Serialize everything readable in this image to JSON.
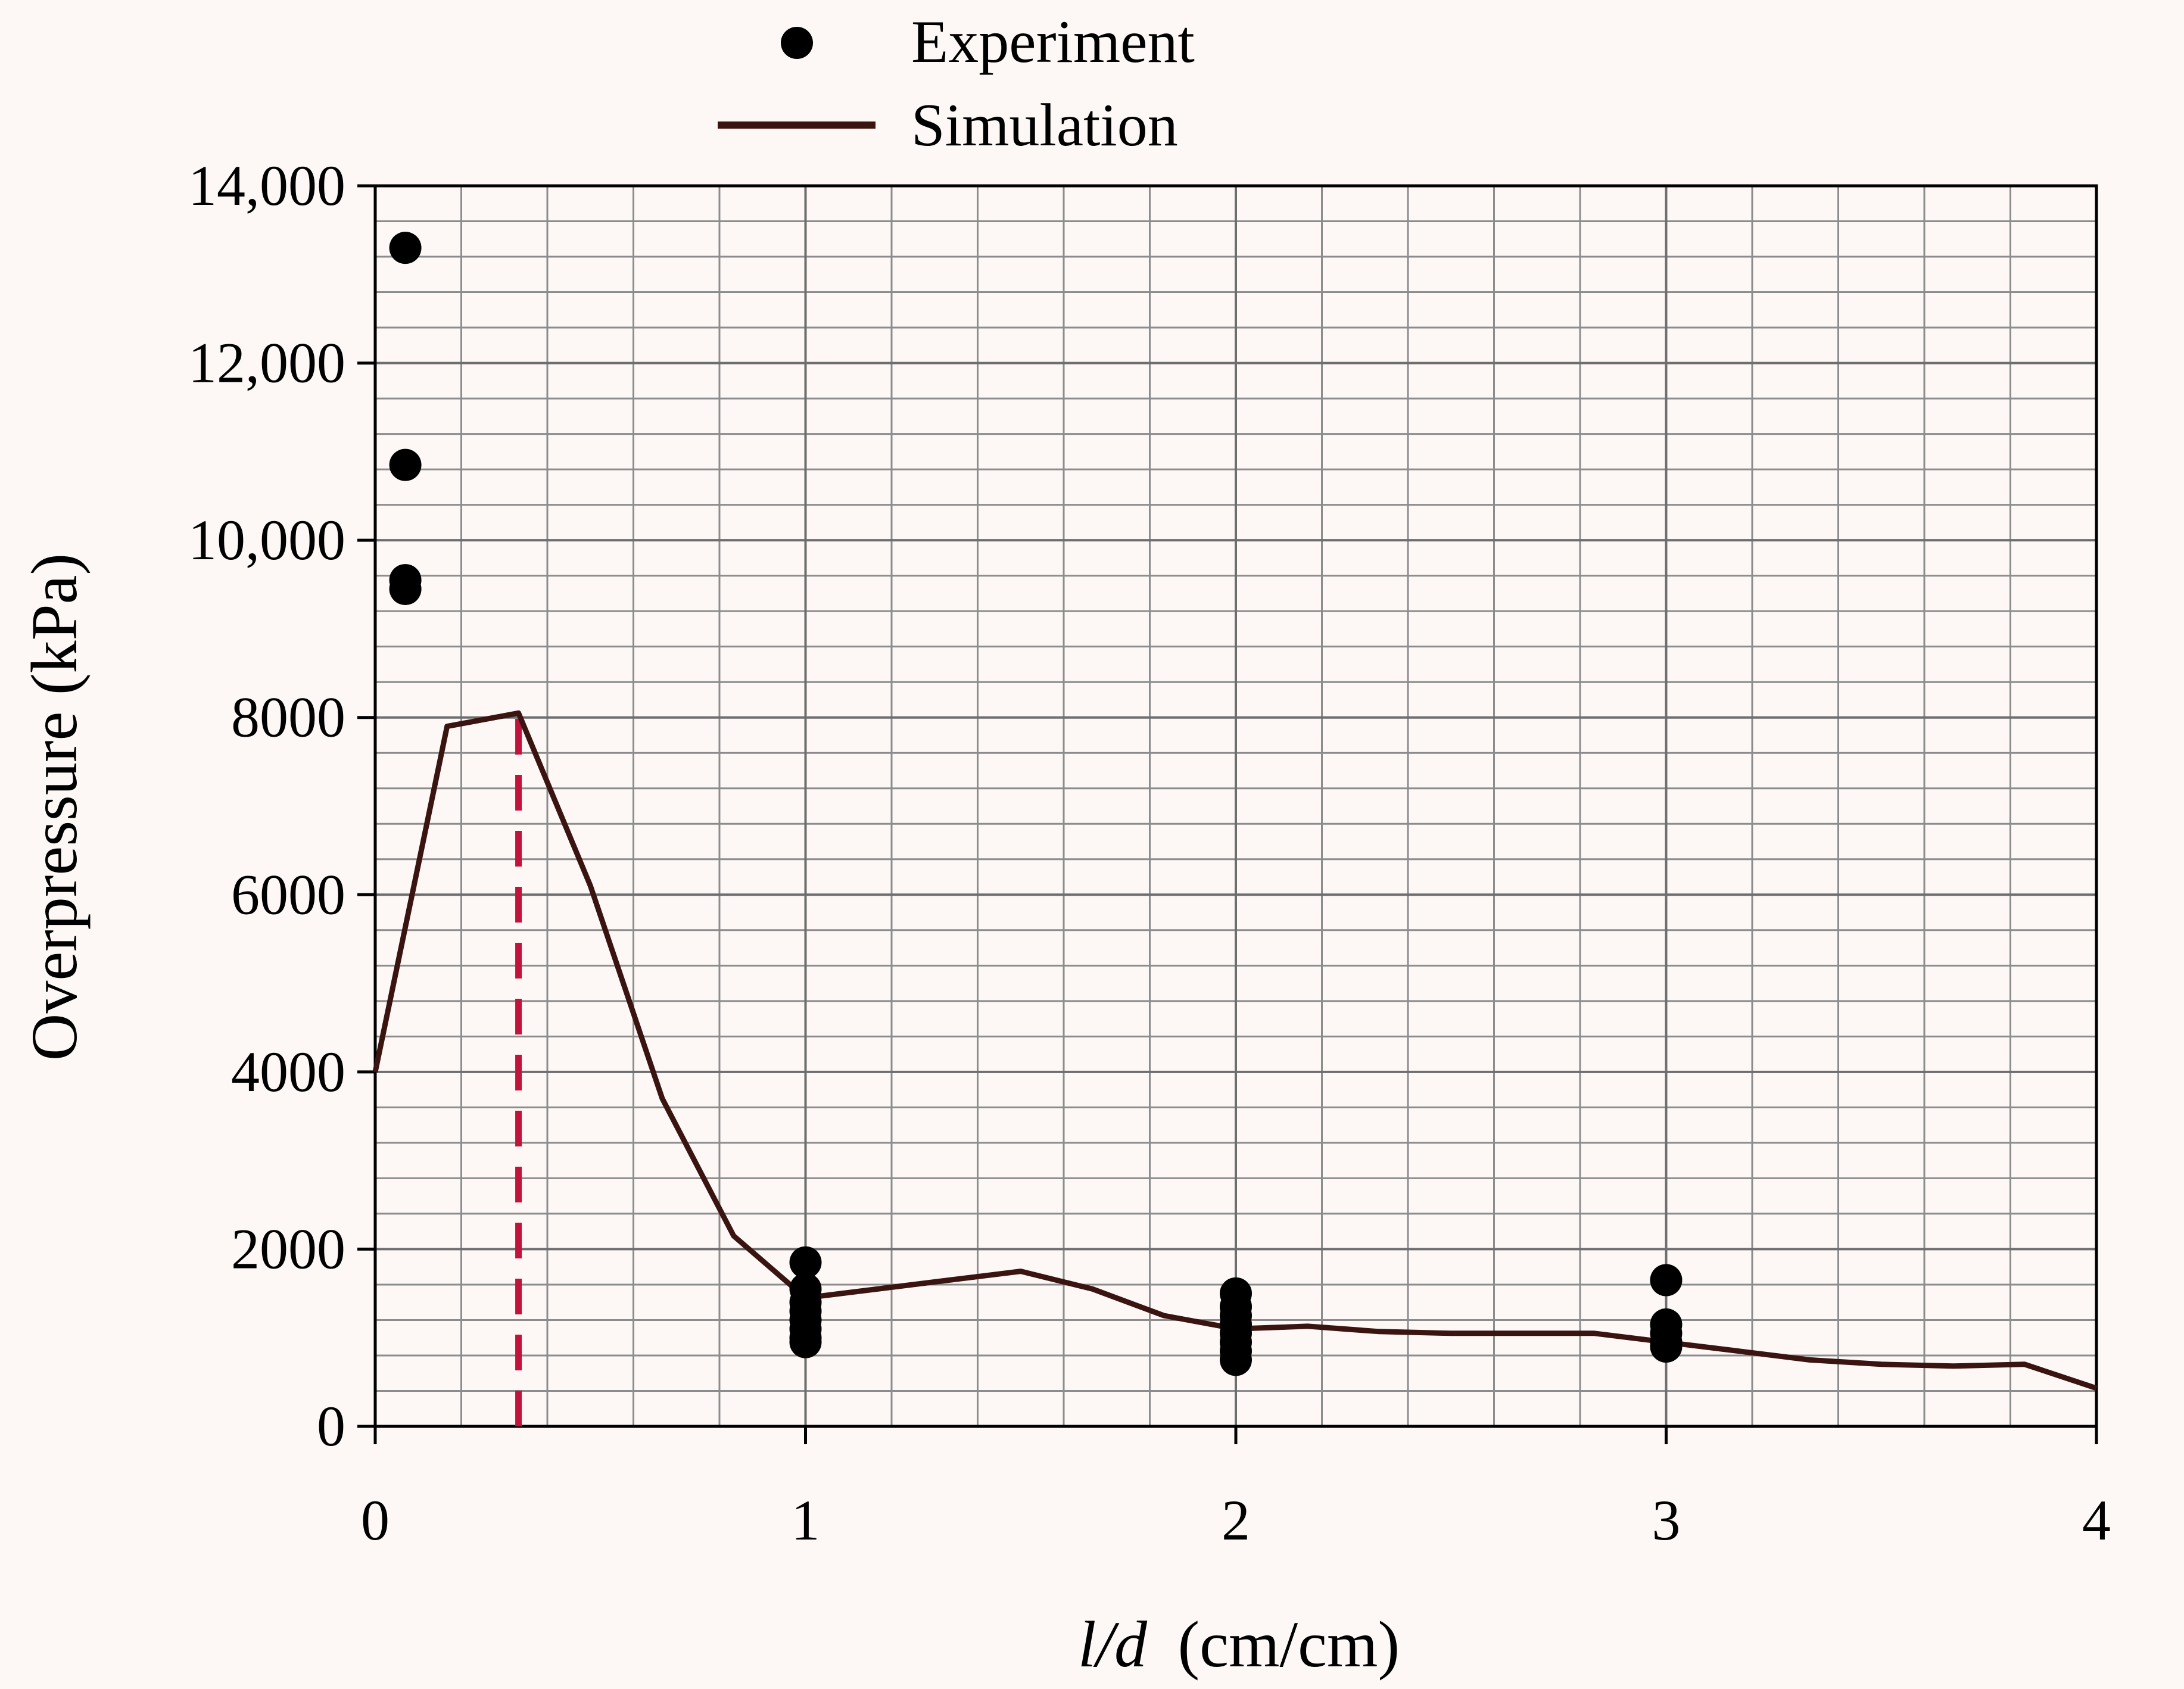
{
  "chart_data": {
    "type": "scatter",
    "title": "",
    "xlabel_italic": "l/d",
    "xlabel_unit": "(cm/cm)",
    "ylabel": "Overpressure (kPa)",
    "xlim": [
      0,
      4
    ],
    "ylim": [
      0,
      14000
    ],
    "xticks": [
      0,
      1,
      2,
      3,
      4
    ],
    "xtick_labels": [
      "0",
      "1",
      "2",
      "3",
      "4"
    ],
    "yticks": [
      0,
      2000,
      4000,
      6000,
      8000,
      10000,
      12000,
      14000
    ],
    "ytick_labels": [
      "0",
      "2000",
      "4000",
      "6000",
      "8000",
      "10,000",
      "12,000",
      "14,000"
    ],
    "minor_x_step": 0.2,
    "minor_y_step": 400,
    "grid": true,
    "legend_position": "top-center",
    "series": [
      {
        "name": "Experiment",
        "kind": "scatter",
        "color": "#000000",
        "points": [
          [
            0.07,
            13300
          ],
          [
            0.07,
            10850
          ],
          [
            0.07,
            9550
          ],
          [
            0.07,
            9450
          ],
          [
            1,
            1850
          ],
          [
            1,
            1550
          ],
          [
            1,
            1400
          ],
          [
            1,
            1300
          ],
          [
            1,
            1200
          ],
          [
            1,
            1100
          ],
          [
            1,
            1000
          ],
          [
            1,
            950
          ],
          [
            2,
            1500
          ],
          [
            2,
            1350
          ],
          [
            2,
            1250
          ],
          [
            2,
            1150
          ],
          [
            2,
            1050
          ],
          [
            2,
            950
          ],
          [
            2,
            850
          ],
          [
            2,
            750
          ],
          [
            3,
            1650
          ],
          [
            3,
            1150
          ],
          [
            3,
            1050
          ],
          [
            3,
            950
          ],
          [
            3,
            900
          ]
        ]
      },
      {
        "name": "Simulation",
        "kind": "line",
        "color": "#3a1410",
        "points": [
          [
            0,
            4000
          ],
          [
            0.167,
            7900
          ],
          [
            0.333,
            8050
          ],
          [
            0.5,
            6100
          ],
          [
            0.667,
            3700
          ],
          [
            0.833,
            2150
          ],
          [
            1,
            1450
          ],
          [
            1.167,
            1550
          ],
          [
            1.333,
            1650
          ],
          [
            1.5,
            1750
          ],
          [
            1.667,
            1550
          ],
          [
            1.833,
            1250
          ],
          [
            2,
            1100
          ],
          [
            2.167,
            1130
          ],
          [
            2.333,
            1070
          ],
          [
            2.5,
            1050
          ],
          [
            2.667,
            1050
          ],
          [
            2.833,
            1050
          ],
          [
            3,
            950
          ],
          [
            3.167,
            850
          ],
          [
            3.333,
            750
          ],
          [
            3.5,
            700
          ],
          [
            3.667,
            680
          ],
          [
            3.833,
            700
          ],
          [
            4,
            430
          ]
        ]
      }
    ],
    "reference_line": {
      "x": 0.333,
      "y_from": 0,
      "y_to": 8050,
      "color": "#c0143c",
      "style": "dashed"
    }
  }
}
